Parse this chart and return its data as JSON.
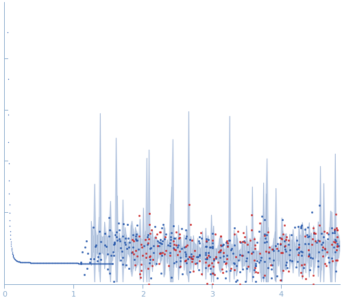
{
  "xlim": [
    0,
    4.85
  ],
  "ylim": [
    -0.08,
    1.02
  ],
  "bg_color": "#ffffff",
  "dot_color_blue": "#2255aa",
  "dot_color_red": "#cc2222",
  "error_band_color": "#c0cfe8",
  "error_line_color": "#9ab0d0",
  "axis_color": "#88aacc",
  "tick_color": "#88aacc",
  "xlabel_ticks": [
    0,
    1,
    2,
    3,
    4
  ],
  "seed": 42
}
